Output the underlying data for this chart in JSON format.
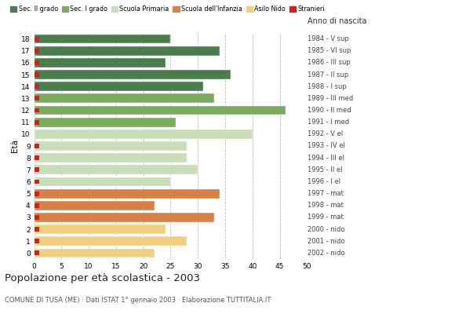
{
  "title": "Popolazione per età scolastica - 2003",
  "subtitle": "COMUNE DI TUSA (ME) · Dati ISTAT 1° gennaio 2003 · Elaborazione TUTTITALIA.IT",
  "ages": [
    18,
    17,
    16,
    15,
    14,
    13,
    12,
    11,
    10,
    9,
    8,
    7,
    6,
    5,
    4,
    3,
    2,
    1,
    0
  ],
  "years": [
    "1984 - V sup",
    "1985 - VI sup",
    "1986 - III sup",
    "1987 - II sup",
    "1988 - I sup",
    "1989 - III med",
    "1990 - II med",
    "1991 - I med",
    "1992 - V el",
    "1993 - IV el",
    "1994 - III el",
    "1995 - II el",
    "1996 - I el",
    "1997 - mat",
    "1998 - mat",
    "1999 - mat",
    "2000 - nido",
    "2001 - nido",
    "2002 - nido"
  ],
  "values": [
    25,
    34,
    24,
    36,
    31,
    33,
    46,
    26,
    40,
    28,
    28,
    30,
    25,
    34,
    22,
    33,
    24,
    28,
    22
  ],
  "categories": [
    "Sec. II grado",
    "Sec. II grado",
    "Sec. II grado",
    "Sec. II grado",
    "Sec. II grado",
    "Sec. I grado",
    "Sec. I grado",
    "Sec. I grado",
    "Scuola Primaria",
    "Scuola Primaria",
    "Scuola Primaria",
    "Scuola Primaria",
    "Scuola Primaria",
    "Scuola dell'Infanzia",
    "Scuola dell'Infanzia",
    "Scuola dell'Infanzia",
    "Asilo Nido",
    "Asilo Nido",
    "Asilo Nido"
  ],
  "stranieri": [
    1,
    1,
    1,
    1,
    1,
    1,
    1,
    1,
    0,
    1,
    1,
    1,
    1,
    1,
    1,
    1,
    1,
    1,
    1
  ],
  "colors": {
    "Sec. II grado": "#4a7c4e",
    "Sec. I grado": "#7aab5e",
    "Scuola Primaria": "#c8ddb8",
    "Scuola dell'Infanzia": "#d4824a",
    "Asilo Nido": "#f0d080",
    "Stranieri": "#cc2222"
  },
  "legend_order": [
    "Sec. II grado",
    "Sec. I grado",
    "Scuola Primaria",
    "Scuola dell'Infanzia",
    "Asilo Nido",
    "Stranieri"
  ],
  "xlim": [
    0,
    50
  ],
  "xticks": [
    0,
    5,
    10,
    15,
    20,
    25,
    30,
    35,
    40,
    45,
    50
  ],
  "background_color": "#ffffff",
  "bar_height": 0.78
}
